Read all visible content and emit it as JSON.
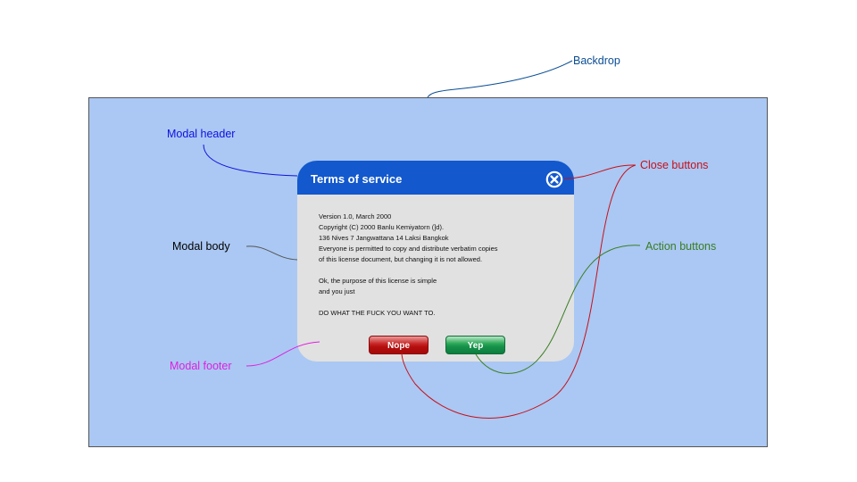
{
  "annotations": {
    "backdrop": "Backdrop",
    "modal_header": "Modal header",
    "modal_body": "Modal body",
    "modal_footer": "Modal footer",
    "close_buttons": "Close buttons",
    "action_buttons": "Action buttons"
  },
  "modal": {
    "title": "Terms of service",
    "body_lines_1": [
      "Version 1.0, March 2000",
      "Copyright (C) 2000 Banlu Kemiyatorn (]d).",
      "136 Nives 7 Jangwattana 14 Laksi Bangkok",
      "Everyone is permitted to copy and distribute verbatim copies",
      "of this license document, but changing it is not allowed."
    ],
    "body_lines_2": [
      "Ok, the purpose of this license is simple",
      "and you just"
    ],
    "body_lines_3": [
      "DO WHAT THE FUCK YOU WANT TO."
    ],
    "buttons": {
      "nope": "Nope",
      "yep": "Yep"
    }
  },
  "colors": {
    "backdrop": "#aac8f3",
    "header": "#1358cd",
    "modal_bg": "#e1e1e1",
    "nope": "#b40f0f",
    "yep": "#16914a",
    "backdrop_label": "#0b4d94",
    "header_label": "#1010e0",
    "body_label": "#000000",
    "footer_label": "#e020e0",
    "close_label": "#c8101a",
    "action_label": "#3a7d22"
  },
  "icons": {
    "close": "close-circle-x-icon"
  }
}
